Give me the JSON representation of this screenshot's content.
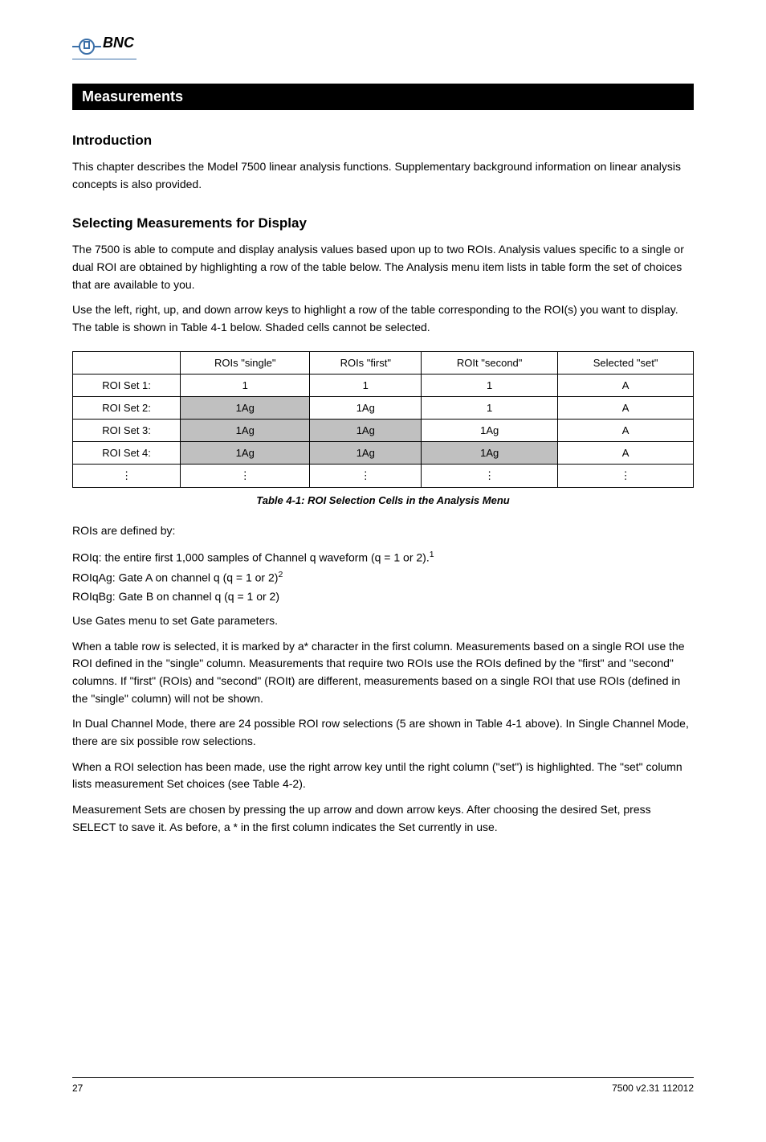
{
  "header": {
    "brand": "BNC",
    "brand_color": "#3a6fa8",
    "chapter_title": "Measurements"
  },
  "sections": {
    "intro_heading": "Introduction",
    "intro_text": "This chapter describes the Model 7500 linear analysis functions. Supplementary background information on linear analysis concepts is also provided.",
    "analysis_heading": "Selecting Measurements for Display",
    "analysis_para1": "The 7500 is able to compute and display analysis values based upon up to two ROIs. Analysis values specific to a single or dual ROI are obtained by highlighting a row of the table below. The Analysis menu item lists in table form the set of choices that are available to you.",
    "analysis_para2": "Use the left, right, up, and down arrow keys to highlight a row of the table corresponding to the ROI(s) you want to display. The table is shown in Table 4-1 below. Shaded cells cannot be selected.",
    "table_caption": "Table 4-1: ROI Selection Cells in the Analysis Menu",
    "roi_defs_intro": "ROIs are defined by:",
    "roi_items": [
      "ROIq: the entire first 1,000 samples of Channel q waveform (q = 1 or 2).",
      "ROIqAg: Gate A on channel q (q = 1 or 2)",
      "ROIqBg: Gate B on channel q (q = 1 or 2)"
    ],
    "roi_note": "Use Gates menu to set Gate parameters.",
    "selected_para1": "When a table row is selected, it is marked by a* character in the first column. Measurements based on a single ROI use the ROI defined in the \"single\" column. Measurements that require two ROIs use the ROIs defined by the \"first\" and \"second\" columns. If \"first\" (ROIs) and \"second\" (ROIt) are different, measurements based on a single ROI that use ROIs (defined in the \"single\" column) will not be shown.",
    "selected_para2": "In Dual Channel Mode, there are 24 possible ROI row selections (5 are shown in Table 4-1 above). In Single Channel Mode, there are six possible row selections.",
    "selected_para3": "When a ROI selection has been made, use the right arrow key until the right column (\"set\") is highlighted. The \"set\" column lists measurement Set choices (see Table 4-2).",
    "selected_para4": "Measurement Sets are chosen by pressing the up arrow and down arrow keys. After choosing the desired Set, press SELECT to save it. As before, a * in the first column indicates the Set currently in use.",
    "superscripts": {
      "note1": "1",
      "note2": "2"
    }
  },
  "roi_table": {
    "headers": [
      "ROIs \"single\"",
      "ROIs \"first\"",
      "ROIt \"second\"",
      "Selected \"set\""
    ],
    "rows": [
      {
        "label": "ROI Set 1:",
        "cells": [
          "1",
          "1",
          "1",
          "A"
        ],
        "shaded": [
          false,
          false,
          false,
          false
        ]
      },
      {
        "label": "ROI Set 2:",
        "cells": [
          "1Ag",
          "1Ag",
          "1",
          "A"
        ],
        "shaded": [
          true,
          false,
          false,
          false
        ]
      },
      {
        "label": "ROI Set 3:",
        "cells": [
          "1Ag",
          "1Ag",
          "1Ag",
          "A"
        ],
        "shaded": [
          true,
          true,
          false,
          false
        ]
      },
      {
        "label": "ROI Set 4:",
        "cells": [
          "1Ag",
          "1Ag",
          "1Ag",
          "A"
        ],
        "shaded": [
          true,
          true,
          true,
          false
        ]
      },
      {
        "label": "⋮",
        "cells": [
          "⋮",
          "⋮",
          "⋮",
          "⋮"
        ],
        "shaded": [
          false,
          false,
          false,
          false
        ]
      }
    ]
  },
  "footer": {
    "page": "27",
    "doc_id": "7500 v2.31 112012"
  }
}
